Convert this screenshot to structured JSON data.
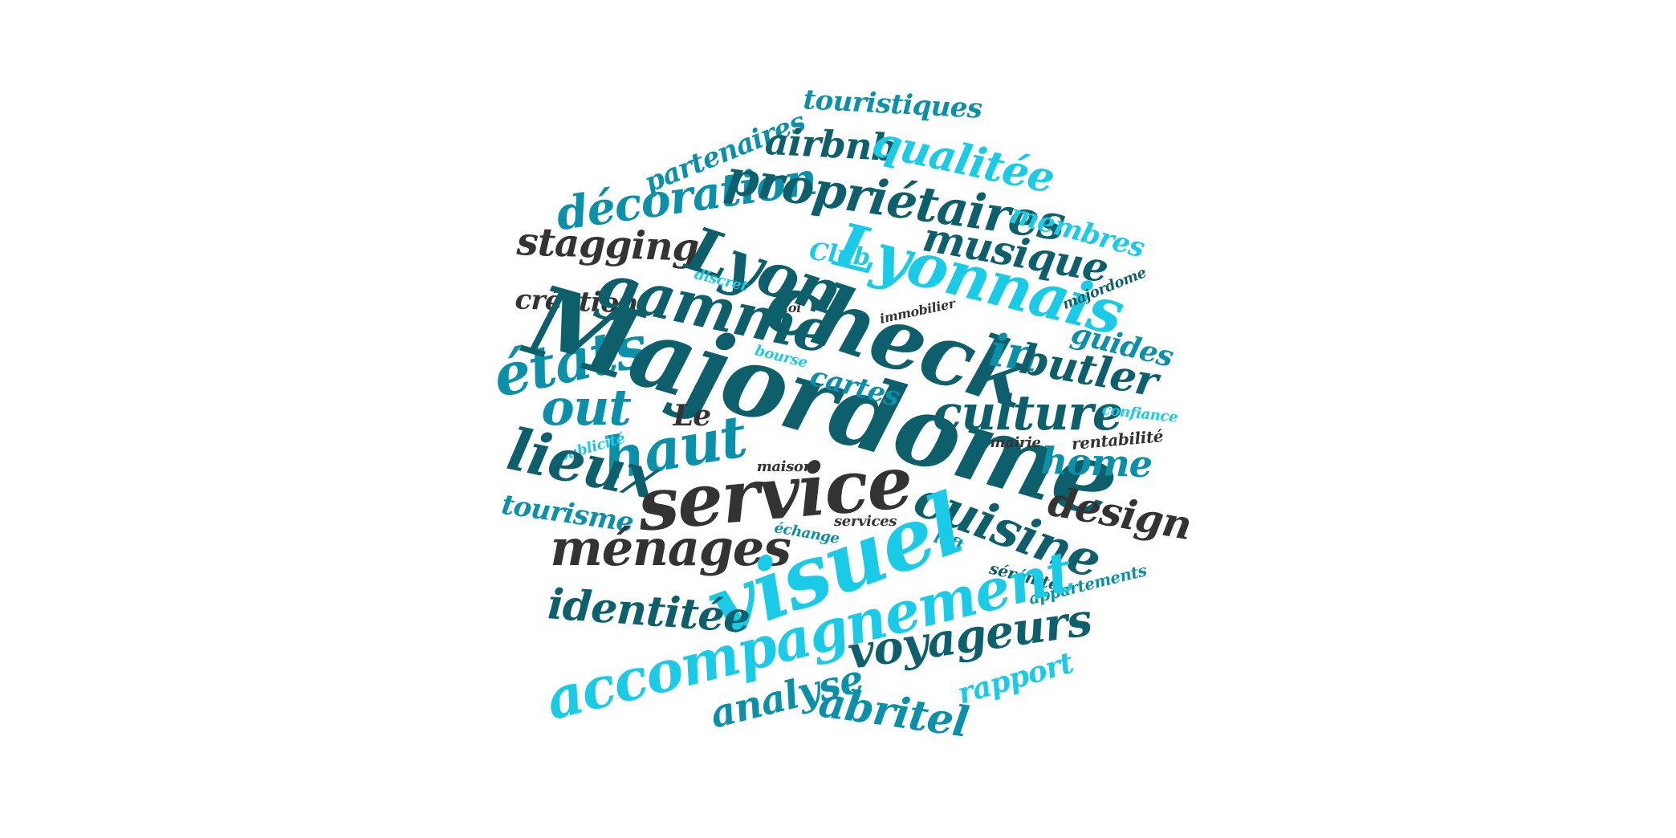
{
  "palette": {
    "dark": "#333333",
    "teal": "#1e7f8f",
    "deep": "#0d5f6b",
    "cyan": "#19cbe6",
    "mid": "#0a90a8"
  },
  "words": [
    {
      "text": "touristiques",
      "color": "mid"
    },
    {
      "text": "partenaires",
      "color": "mid"
    },
    {
      "text": "airbnb",
      "color": "deep"
    },
    {
      "text": "qualitée",
      "color": "cyan"
    },
    {
      "text": "décoration",
      "color": "mid"
    },
    {
      "text": "propriétaires",
      "color": "deep"
    },
    {
      "text": "membres",
      "color": "cyan"
    },
    {
      "text": "stagging",
      "color": "dark"
    },
    {
      "text": "Lyon",
      "color": "deep"
    },
    {
      "text": "Club",
      "color": "cyan"
    },
    {
      "text": "Lyonnais",
      "color": "cyan"
    },
    {
      "text": "musique",
      "color": "deep"
    },
    {
      "text": "discret",
      "color": "cyan"
    },
    {
      "text": "création",
      "color": "dark"
    },
    {
      "text": "gamme",
      "color": "deep"
    },
    {
      "text": "loi",
      "color": "dark"
    },
    {
      "text": "immobilier",
      "color": "dark"
    },
    {
      "text": "majordome",
      "color": "deep"
    },
    {
      "text": "check",
      "color": "deep"
    },
    {
      "text": "in",
      "color": "mid"
    },
    {
      "text": "guides",
      "color": "mid"
    },
    {
      "text": "états",
      "color": "mid"
    },
    {
      "text": "Majordome",
      "color": "deep"
    },
    {
      "text": "bourse",
      "color": "cyan"
    },
    {
      "text": "butler",
      "color": "deep"
    },
    {
      "text": "cartes",
      "color": "mid"
    },
    {
      "text": "out",
      "color": "mid"
    },
    {
      "text": "culture",
      "color": "deep"
    },
    {
      "text": "confiance",
      "color": "cyan"
    },
    {
      "text": "Le",
      "color": "dark"
    },
    {
      "text": "haut",
      "color": "mid"
    },
    {
      "text": "publicité",
      "color": "cyan"
    },
    {
      "text": "mairie",
      "color": "dark"
    },
    {
      "text": "rentabilité",
      "color": "dark"
    },
    {
      "text": "lieux",
      "color": "deep"
    },
    {
      "text": "maison",
      "color": "dark"
    },
    {
      "text": "home",
      "color": "mid"
    },
    {
      "text": "service",
      "color": "dark"
    },
    {
      "text": "design",
      "color": "dark"
    },
    {
      "text": "cuisine",
      "color": "deep"
    },
    {
      "text": "tourisme",
      "color": "mid"
    },
    {
      "text": "échange",
      "color": "mid"
    },
    {
      "text": "services",
      "color": "dark"
    },
    {
      "text": "loft",
      "color": "mid"
    },
    {
      "text": "ménages",
      "color": "dark"
    },
    {
      "text": "visuel",
      "color": "cyan"
    },
    {
      "text": "sérénité",
      "color": "deep"
    },
    {
      "text": "appartements",
      "color": "mid"
    },
    {
      "text": "identitée",
      "color": "deep"
    },
    {
      "text": "accompagnement",
      "color": "cyan"
    },
    {
      "text": "voyageurs",
      "color": "deep"
    },
    {
      "text": "rapport",
      "color": "cyan"
    },
    {
      "text": "analyse",
      "color": "mid"
    },
    {
      "text": "abritel",
      "color": "mid"
    }
  ]
}
